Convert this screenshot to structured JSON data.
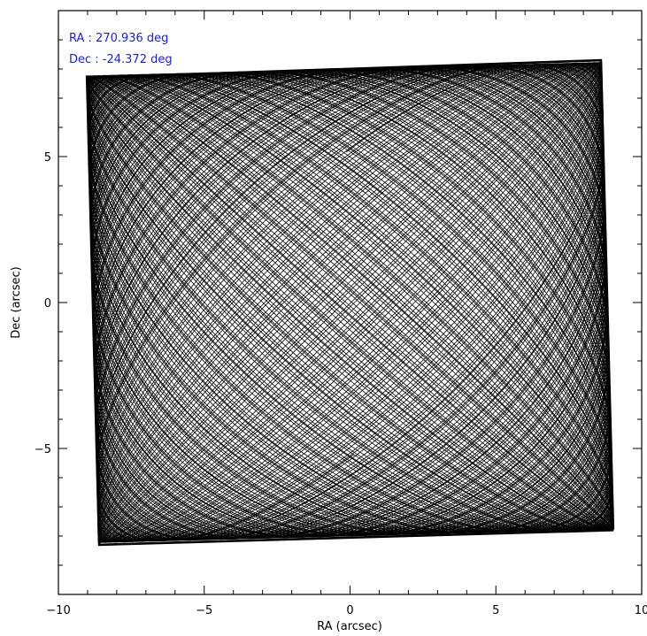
{
  "chart_data": {
    "type": "line",
    "title": "",
    "xlabel": "RA (arcsec)",
    "ylabel": "Dec (arcsec)",
    "xlim": [
      -10,
      10
    ],
    "ylim": [
      -10,
      10
    ],
    "xticks": [
      -10,
      -5,
      0,
      5,
      10
    ],
    "yticks": [
      -5,
      0,
      5
    ],
    "grid": false,
    "annotations": [
      "RA : 270.936 deg",
      "Dec : -24.372 deg"
    ],
    "series": [
      {
        "description_of_pattern": "Lissajous-type scan filling a slightly rotated square",
        "x_amplitude": 8.85,
        "y_amplitude": 8.0,
        "rotation_deg": 1.5,
        "freq_x": 1.0,
        "freq_y": 1.0361,
        "cycles": 160,
        "color": "#000000"
      }
    ],
    "corners": {
      "top_left": [
        -9.0,
        7.7
      ],
      "top_right": [
        8.6,
        8.3
      ],
      "bottom_right": [
        9.0,
        -7.8
      ],
      "bottom_left": [
        -8.6,
        -8.3
      ]
    }
  }
}
